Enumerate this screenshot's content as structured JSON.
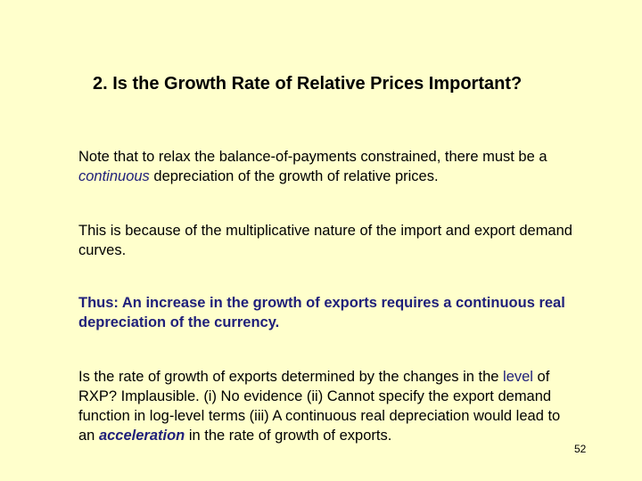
{
  "slide": {
    "title": "2. Is the Growth Rate of Relative Prices Important?",
    "p1": {
      "a": "Note that to relax the balance-of-payments constrained, there must be a ",
      "emph": "continuous",
      "b": " depreciation of the growth of relative prices."
    },
    "p2": "This is because of the multiplicative nature of the import and export demand curves.",
    "p3": "Thus: An increase in the growth of exports requires a continuous real depreciation of the currency.",
    "p4": {
      "a": "Is the rate of growth of exports determined by the changes in the ",
      "level": "level",
      "b": " of RXP? Implausible. (i) No evidence (ii) Cannot specify the export demand function in log-level terms (iii) A continuous real depreciation would lead to an ",
      "accel": "acceleration",
      "c": " in the rate of growth of exports."
    },
    "page_number": "52",
    "colors": {
      "background": "#ffffcc",
      "accent": "#1f1f7a"
    }
  }
}
